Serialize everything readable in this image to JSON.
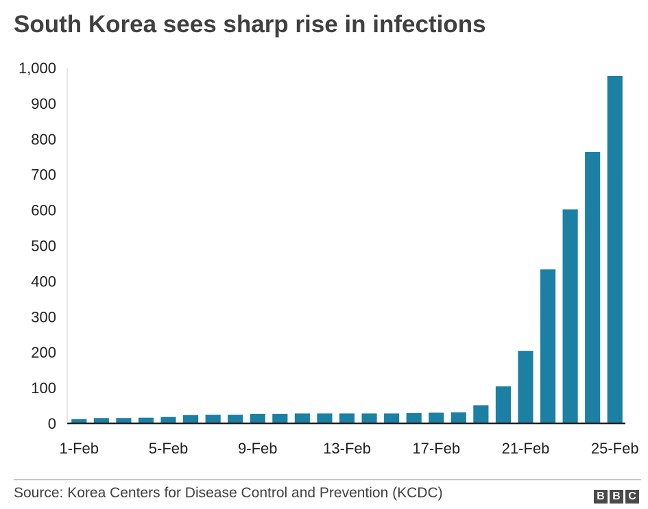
{
  "title": "South Korea sees sharp rise in infections",
  "source": "Source: Korea Centers for Disease Control and Prevention (KCDC)",
  "logo": {
    "letters": [
      "B",
      "B",
      "C"
    ]
  },
  "colors": {
    "bar": "#1b80a3",
    "axis": "#222222",
    "text": "#222222",
    "grid": "#d9d9d9"
  },
  "chart_data": {
    "type": "bar",
    "title": "South Korea sees sharp rise in infections",
    "xlabel": "",
    "ylabel": "",
    "categories": [
      "1-Feb",
      "2-Feb",
      "3-Feb",
      "4-Feb",
      "5-Feb",
      "6-Feb",
      "7-Feb",
      "8-Feb",
      "9-Feb",
      "10-Feb",
      "11-Feb",
      "12-Feb",
      "13-Feb",
      "14-Feb",
      "15-Feb",
      "16-Feb",
      "17-Feb",
      "18-Feb",
      "19-Feb",
      "20-Feb",
      "21-Feb",
      "22-Feb",
      "23-Feb",
      "24-Feb",
      "25-Feb"
    ],
    "x_tick_labels": [
      "1-Feb",
      "5-Feb",
      "9-Feb",
      "13-Feb",
      "17-Feb",
      "21-Feb",
      "25-Feb"
    ],
    "values": [
      12,
      15,
      15,
      16,
      18,
      23,
      24,
      24,
      27,
      27,
      28,
      28,
      28,
      28,
      28,
      29,
      30,
      31,
      51,
      104,
      204,
      433,
      602,
      763,
      977
    ],
    "ylim": [
      0,
      1000
    ],
    "y_ticks": [
      0,
      100,
      200,
      300,
      400,
      500,
      600,
      700,
      800,
      900,
      1000
    ],
    "y_tick_labels": [
      "0",
      "100",
      "200",
      "300",
      "400",
      "500",
      "600",
      "700",
      "800",
      "900",
      "1,000"
    ],
    "grid": false,
    "legend": "none"
  }
}
